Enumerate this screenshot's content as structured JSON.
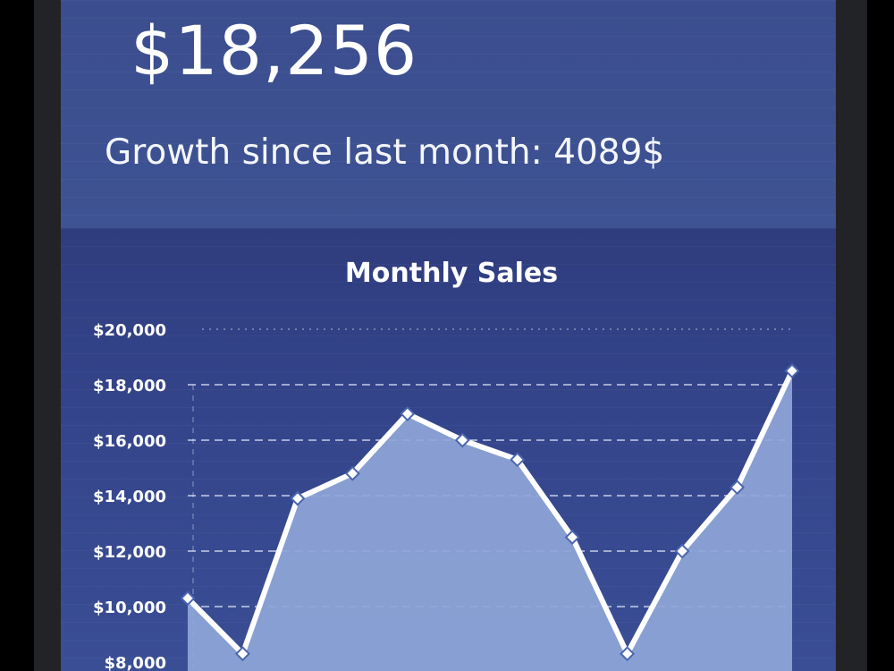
{
  "kpi": {
    "value": "$18,256",
    "subtitle": "Growth since last month: 4089$"
  },
  "colors": {
    "line": "#ffffff",
    "area": "#8fa6d8",
    "grid": "#dfe6f7",
    "text": "#ffffff"
  },
  "chart_data": {
    "type": "area",
    "title": "Monthly Sales",
    "xlabel": "",
    "ylabel": "",
    "ylim": [
      8000,
      20000
    ],
    "yticks": [
      "$8,000",
      "$10,000",
      "$12,000",
      "$14,000",
      "$16,000",
      "$18,000",
      "$20,000"
    ],
    "ytick_values": [
      8000,
      10000,
      12000,
      14000,
      16000,
      18000,
      20000
    ],
    "grid": true,
    "legend": "none",
    "series": [
      {
        "values": [
          10300,
          8300,
          13900,
          14800,
          16950,
          16000,
          15300,
          12500,
          8300,
          12000,
          14300,
          18500
        ]
      }
    ]
  }
}
